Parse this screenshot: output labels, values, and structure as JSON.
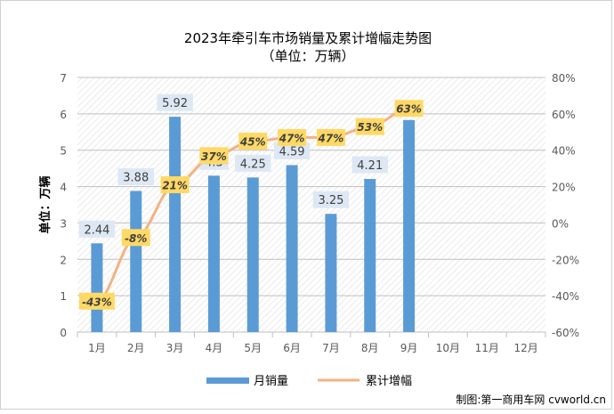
{
  "chart_data": {
    "type": "bar+line",
    "title": "2023年牵引车市场销量及累计增幅走势图",
    "subtitle": "（单位：万辆）",
    "ylabel": "单位：万辆",
    "categories": [
      "1月",
      "2月",
      "3月",
      "4月",
      "5月",
      "6月",
      "7月",
      "8月",
      "9月",
      "10月",
      "11月",
      "12月"
    ],
    "bar_series": {
      "name": "月销量",
      "values": [
        2.44,
        3.88,
        5.92,
        4.3,
        4.25,
        4.59,
        3.25,
        4.21,
        5.83
      ],
      "labels": [
        "2.44",
        "3.88",
        "5.92",
        "4.3",
        "4.25",
        "4.59",
        "3.25",
        "4.21",
        ""
      ],
      "color": "#5b9bd5"
    },
    "line_series": {
      "name": "累计增幅",
      "values": [
        -43,
        -8,
        21,
        37,
        45,
        47,
        47,
        53,
        63
      ],
      "labels": [
        "-43%",
        "-8%",
        "21%",
        "37%",
        "45%",
        "47%",
        "47%",
        "53%",
        "63%"
      ],
      "color": "#f4b183",
      "label_bg": "#ffd966"
    },
    "y_left": {
      "min": 0,
      "max": 7,
      "ticks": [
        "0",
        "1",
        "2",
        "3",
        "4",
        "5",
        "6",
        "7"
      ]
    },
    "y_right": {
      "min": -60,
      "max": 80,
      "ticks": [
        "-60%",
        "-40%",
        "-20%",
        "0%",
        "20%",
        "40%",
        "60%",
        "80%"
      ]
    },
    "legend_position": "bottom",
    "grid": true
  },
  "source": "制图:第一商用车网 cvworld.cn"
}
